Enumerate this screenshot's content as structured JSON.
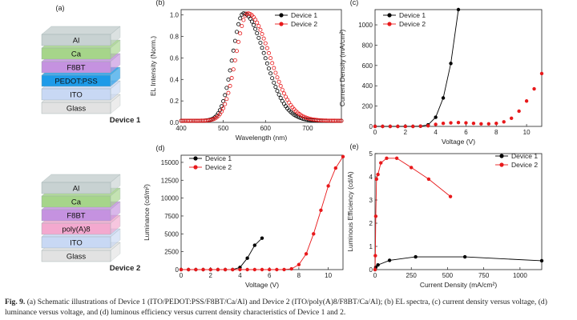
{
  "devices": [
    {
      "name": "Device 1",
      "layers": [
        "Al",
        "Ca",
        "F8BT",
        "PEDOT:PSS",
        "ITO",
        "Glass"
      ],
      "colors": [
        "#c8d2d2",
        "#a6d58a",
        "#c592e0",
        "#1e9be8",
        "#c8d8f4",
        "#e2e2e2"
      ]
    },
    {
      "name": "Device 2",
      "layers": [
        "Al",
        "Ca",
        "F8BT",
        "poly(A)8",
        "ITO",
        "Glass"
      ],
      "colors": [
        "#c8d2d2",
        "#a6d58a",
        "#c592e0",
        "#f3a9cf",
        "#c8d8f4",
        "#e2e2e2"
      ]
    }
  ],
  "panel_labels": {
    "a": "(a)",
    "b": "(b)",
    "c": "(c)",
    "d": "(d)",
    "e": "(e)"
  },
  "legend": {
    "d1": "Device 1",
    "d2": "Device 2"
  },
  "colors": {
    "d1": "#000000",
    "d2": "#e8191b"
  },
  "chart_data": [
    {
      "id": "b",
      "type": "scatter",
      "xlabel": "Wavelength (nm)",
      "ylabel": "EL Intensity (Norm.)",
      "xlim": [
        400,
        780
      ],
      "ylim": [
        0,
        1.05
      ],
      "xticks": [
        400,
        500,
        600,
        700
      ],
      "yticks": [
        0.0,
        0.2,
        0.4,
        0.6,
        0.8,
        1.0
      ],
      "ytick_labels": [
        "0.0",
        "0.2",
        "0.4",
        "0.6",
        "0.8",
        "1.0"
      ],
      "series": [
        {
          "name": "Device 1",
          "peak": 548,
          "sl": 26,
          "sr": 50
        },
        {
          "name": "Device 2",
          "peak": 558,
          "sl": 28,
          "sr": 52
        }
      ]
    },
    {
      "id": "c",
      "type": "line",
      "xlabel": "Voltage (V)",
      "ylabel": "Current Density (mA/cm²)",
      "xlim": [
        0,
        11
      ],
      "ylim": [
        0,
        1150
      ],
      "xticks": [
        0,
        2,
        4,
        6,
        8,
        10
      ],
      "yticks": [
        0,
        200,
        400,
        600,
        800,
        1000
      ],
      "series": [
        {
          "name": "Device 1",
          "x": [
            0,
            0.5,
            1,
            1.5,
            2,
            2.5,
            3,
            3.5,
            4,
            4.5,
            5,
            5.5
          ],
          "y": [
            0,
            0,
            0,
            0,
            0,
            0,
            2,
            15,
            90,
            280,
            620,
            1150
          ]
        },
        {
          "name": "Device 2",
          "x": [
            0,
            0.5,
            1,
            1.5,
            2,
            2.5,
            3,
            3.5,
            4,
            4.5,
            5,
            5.5,
            6,
            6.5,
            7,
            7.5,
            8,
            8.5,
            9,
            9.5,
            10,
            10.5,
            11
          ],
          "y": [
            0,
            0,
            0,
            0,
            0,
            0,
            2,
            6,
            20,
            30,
            35,
            38,
            35,
            30,
            25,
            25,
            30,
            45,
            80,
            150,
            250,
            370,
            520
          ]
        }
      ]
    },
    {
      "id": "d",
      "type": "line",
      "xlabel": "Voltage (V)",
      "ylabel": "Luminance (cd/m²)",
      "xlim": [
        0,
        11
      ],
      "ylim": [
        0,
        16000
      ],
      "xticks": [
        0,
        2,
        4,
        6,
        8,
        10
      ],
      "yticks": [
        0,
        2500,
        5000,
        7500,
        10000,
        12500,
        15000
      ],
      "series": [
        {
          "name": "Device 1",
          "x": [
            0,
            0.5,
            1,
            1.5,
            2,
            2.5,
            3,
            3.5,
            4,
            4.5,
            5,
            5.5
          ],
          "y": [
            0,
            0,
            0,
            0,
            0,
            0,
            0,
            5,
            300,
            1600,
            3400,
            4400
          ]
        },
        {
          "name": "Device 2",
          "x": [
            0,
            0.5,
            1,
            1.5,
            2,
            2.5,
            3,
            3.5,
            4,
            4.5,
            5,
            5.5,
            6,
            6.5,
            7,
            7.5,
            8,
            8.5,
            9,
            9.5,
            10,
            10.5,
            11
          ],
          "y": [
            0,
            0,
            0,
            0,
            0,
            0,
            0,
            0,
            0,
            0,
            0,
            0,
            0,
            0,
            10,
            100,
            700,
            2200,
            5000,
            8300,
            11700,
            14200,
            15800
          ]
        }
      ]
    },
    {
      "id": "e",
      "type": "line",
      "xlabel": "Current Density (mA/cm²)",
      "ylabel": "Luminous Efficiency (cd/A)",
      "xlim": [
        0,
        1150
      ],
      "ylim": [
        0,
        5
      ],
      "xticks": [
        0,
        250,
        500,
        750,
        1000
      ],
      "yticks": [
        0,
        1,
        2,
        3,
        4,
        5
      ],
      "series": [
        {
          "name": "Device 1",
          "x": [
            0,
            5,
            20,
            100,
            280,
            620,
            1150
          ],
          "y": [
            0,
            0.1,
            0.2,
            0.4,
            0.55,
            0.55,
            0.38
          ]
        },
        {
          "name": "Device 2",
          "x": [
            0,
            2,
            5,
            10,
            20,
            40,
            80,
            150,
            250,
            370,
            520
          ],
          "y": [
            0,
            0.6,
            2.3,
            3.9,
            4.1,
            4.6,
            4.8,
            4.8,
            4.4,
            3.9,
            3.15
          ]
        }
      ]
    }
  ],
  "caption": {
    "prefix": "Fig. 9.",
    "text": "(a) Schematic illustrations of Device 1 (ITO/PEDOT:PSS/F8BT/Ca/Al) and Device 2 (ITO/poly(A)8/F8BT/Ca/Al); (b) EL spectra, (c) current density versus voltage, (d) luminance versus voltage, and (d) luminous efficiency versus current density characteristics of Device 1 and 2."
  }
}
